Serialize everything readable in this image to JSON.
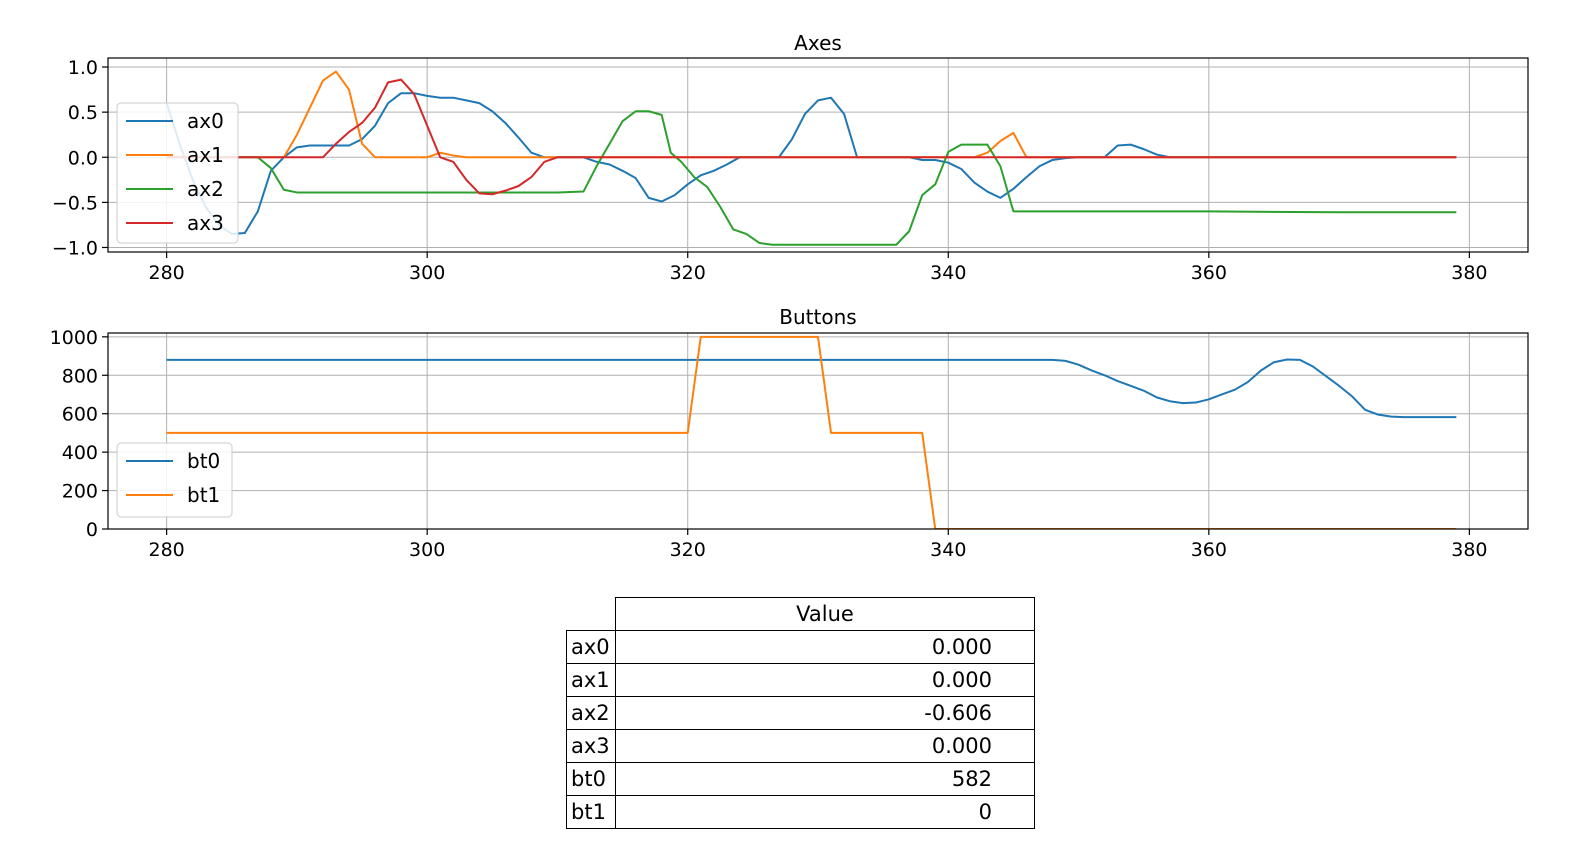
{
  "chart_data": [
    {
      "type": "line",
      "title": "Axes",
      "xlim": [
        275.5,
        384.5
      ],
      "ylim": [
        -1.05,
        1.1
      ],
      "xticks": [
        280,
        300,
        320,
        340,
        360,
        380
      ],
      "yticks": [
        1.0,
        0.5,
        0.0,
        -0.5,
        -1.0
      ],
      "ytick_labels": [
        "1.0",
        "0.5",
        "0.0",
        "−0.5",
        "−1.0"
      ],
      "grid": true,
      "legend": "center-left",
      "series": [
        {
          "name": "ax0",
          "color": "#1f77b4",
          "points": [
            [
              280,
              0.6
            ],
            [
              281,
              0.15
            ],
            [
              282,
              -0.25
            ],
            [
              283,
              -0.55
            ],
            [
              284,
              -0.75
            ],
            [
              285,
              -0.85
            ],
            [
              286,
              -0.84
            ],
            [
              287,
              -0.6
            ],
            [
              288,
              -0.15
            ],
            [
              289,
              0.0
            ],
            [
              290,
              0.11
            ],
            [
              291,
              0.13
            ],
            [
              292,
              0.13
            ],
            [
              293,
              0.13
            ],
            [
              294,
              0.13
            ],
            [
              295,
              0.2
            ],
            [
              296,
              0.35
            ],
            [
              297,
              0.6
            ],
            [
              298,
              0.71
            ],
            [
              299,
              0.71
            ],
            [
              300,
              0.68
            ],
            [
              301,
              0.66
            ],
            [
              302,
              0.66
            ],
            [
              303,
              0.63
            ],
            [
              304,
              0.6
            ],
            [
              305,
              0.51
            ],
            [
              306,
              0.38
            ],
            [
              307,
              0.22
            ],
            [
              308,
              0.05
            ],
            [
              309,
              0.0
            ],
            [
              310,
              0.0
            ],
            [
              311,
              0.0
            ],
            [
              312,
              0.0
            ],
            [
              313,
              -0.05
            ],
            [
              314,
              -0.08
            ],
            [
              315,
              -0.15
            ],
            [
              316,
              -0.23
            ],
            [
              317,
              -0.45
            ],
            [
              318,
              -0.49
            ],
            [
              319,
              -0.42
            ],
            [
              320,
              -0.3
            ],
            [
              321,
              -0.2
            ],
            [
              322,
              -0.15
            ],
            [
              323,
              -0.08
            ],
            [
              324,
              0.0
            ],
            [
              325,
              0.0
            ],
            [
              326,
              0.0
            ],
            [
              327,
              0.0
            ],
            [
              328,
              0.2
            ],
            [
              329,
              0.48
            ],
            [
              330,
              0.63
            ],
            [
              331,
              0.66
            ],
            [
              332,
              0.48
            ],
            [
              333,
              0.0
            ],
            [
              334,
              0.0
            ],
            [
              335,
              0.0
            ],
            [
              336,
              0.0
            ],
            [
              337,
              0.0
            ],
            [
              338,
              -0.03
            ],
            [
              339,
              -0.03
            ],
            [
              340,
              -0.06
            ],
            [
              341,
              -0.13
            ],
            [
              342,
              -0.28
            ],
            [
              343,
              -0.38
            ],
            [
              344,
              -0.45
            ],
            [
              345,
              -0.35
            ],
            [
              346,
              -0.22
            ],
            [
              347,
              -0.1
            ],
            [
              348,
              -0.03
            ],
            [
              349,
              -0.01
            ],
            [
              350,
              0.0
            ],
            [
              351,
              0.0
            ],
            [
              352,
              0.0
            ],
            [
              353,
              0.13
            ],
            [
              354,
              0.14
            ],
            [
              355,
              0.09
            ],
            [
              356,
              0.03
            ],
            [
              357,
              0.0
            ],
            [
              358,
              0.0
            ],
            [
              379,
              0.0
            ]
          ]
        },
        {
          "name": "ax1",
          "color": "#ff7f0e",
          "points": [
            [
              280,
              0.0
            ],
            [
              288,
              0.0
            ],
            [
              289,
              0.0
            ],
            [
              290,
              0.25
            ],
            [
              291,
              0.55
            ],
            [
              292,
              0.85
            ],
            [
              293,
              0.95
            ],
            [
              294,
              0.75
            ],
            [
              295,
              0.15
            ],
            [
              296,
              0.0
            ],
            [
              300,
              0.0
            ],
            [
              301,
              0.05
            ],
            [
              302,
              0.02
            ],
            [
              303,
              0.0
            ],
            [
              342,
              0.0
            ],
            [
              343,
              0.05
            ],
            [
              344,
              0.18
            ],
            [
              345,
              0.27
            ],
            [
              346,
              0.0
            ],
            [
              379,
              0.0
            ]
          ]
        },
        {
          "name": "ax2",
          "color": "#2ca02c",
          "points": [
            [
              280,
              0.0
            ],
            [
              287,
              0.0
            ],
            [
              288,
              -0.12
            ],
            [
              289,
              -0.36
            ],
            [
              290,
              -0.39
            ],
            [
              300,
              -0.39
            ],
            [
              310,
              -0.39
            ],
            [
              312,
              -0.38
            ],
            [
              313,
              -0.1
            ],
            [
              314,
              0.15
            ],
            [
              315,
              0.4
            ],
            [
              316,
              0.51
            ],
            [
              317,
              0.51
            ],
            [
              318,
              0.47
            ],
            [
              318.7,
              0.05
            ],
            [
              319.5,
              -0.05
            ],
            [
              320.5,
              -0.22
            ],
            [
              321.5,
              -0.33
            ],
            [
              322.5,
              -0.55
            ],
            [
              323.5,
              -0.8
            ],
            [
              324.5,
              -0.85
            ],
            [
              325.5,
              -0.95
            ],
            [
              326.5,
              -0.97
            ],
            [
              330,
              -0.97
            ],
            [
              333,
              -0.97
            ],
            [
              336,
              -0.97
            ],
            [
              337,
              -0.82
            ],
            [
              338,
              -0.42
            ],
            [
              339,
              -0.3
            ],
            [
              340,
              0.06
            ],
            [
              341,
              0.14
            ],
            [
              343,
              0.14
            ],
            [
              344,
              -0.1
            ],
            [
              345,
              -0.6
            ],
            [
              350,
              -0.6
            ],
            [
              360,
              -0.6
            ],
            [
              370,
              -0.61
            ],
            [
              379,
              -0.61
            ]
          ]
        },
        {
          "name": "ax3",
          "color": "#d62728",
          "points": [
            [
              280,
              0.0
            ],
            [
              291,
              0.0
            ],
            [
              292,
              0.0
            ],
            [
              293,
              0.15
            ],
            [
              294,
              0.28
            ],
            [
              295,
              0.38
            ],
            [
              296,
              0.55
            ],
            [
              297,
              0.83
            ],
            [
              298,
              0.86
            ],
            [
              299,
              0.7
            ],
            [
              300,
              0.35
            ],
            [
              301,
              0.0
            ],
            [
              302,
              -0.05
            ],
            [
              303,
              -0.25
            ],
            [
              304,
              -0.4
            ],
            [
              305,
              -0.41
            ],
            [
              306,
              -0.37
            ],
            [
              307,
              -0.32
            ],
            [
              308,
              -0.22
            ],
            [
              309,
              -0.05
            ],
            [
              310,
              0.0
            ],
            [
              379,
              0.0
            ]
          ]
        }
      ]
    },
    {
      "type": "line",
      "title": "Buttons",
      "xlim": [
        275.5,
        384.5
      ],
      "ylim": [
        0,
        1020
      ],
      "xticks": [
        280,
        300,
        320,
        340,
        360,
        380
      ],
      "yticks": [
        0,
        200,
        400,
        600,
        800,
        1000
      ],
      "ytick_labels": [
        "0",
        "200",
        "400",
        "600",
        "800",
        "1000"
      ],
      "grid": true,
      "legend": "lower-left",
      "series": [
        {
          "name": "bt0",
          "color": "#1f77b4",
          "points": [
            [
              280,
              880
            ],
            [
              300,
              880
            ],
            [
              320,
              880
            ],
            [
              340,
              880
            ],
            [
              348,
              880
            ],
            [
              349,
              875
            ],
            [
              350,
              855
            ],
            [
              351,
              825
            ],
            [
              352,
              800
            ],
            [
              353,
              770
            ],
            [
              354,
              745
            ],
            [
              355,
              720
            ],
            [
              356,
              685
            ],
            [
              357,
              665
            ],
            [
              358,
              655
            ],
            [
              359,
              658
            ],
            [
              360,
              675
            ],
            [
              361,
              700
            ],
            [
              362,
              725
            ],
            [
              363,
              765
            ],
            [
              364,
              825
            ],
            [
              365,
              868
            ],
            [
              366,
              882
            ],
            [
              367,
              880
            ],
            [
              368,
              845
            ],
            [
              369,
              795
            ],
            [
              370,
              745
            ],
            [
              371,
              690
            ],
            [
              372,
              620
            ],
            [
              373,
              595
            ],
            [
              374,
              585
            ],
            [
              375,
              582
            ],
            [
              379,
              582
            ]
          ]
        },
        {
          "name": "bt1",
          "color": "#ff7f0e",
          "points": [
            [
              280,
              500
            ],
            [
              320,
              500
            ],
            [
              321,
              1000
            ],
            [
              330,
              1000
            ],
            [
              331,
              500
            ],
            [
              338,
              500
            ],
            [
              339,
              0
            ],
            [
              379,
              0
            ]
          ]
        }
      ]
    }
  ],
  "table": {
    "header": "Value",
    "rows": [
      {
        "label": "ax0",
        "value": "0.000"
      },
      {
        "label": "ax1",
        "value": "0.000"
      },
      {
        "label": "ax2",
        "value": "-0.606"
      },
      {
        "label": "ax3",
        "value": "0.000"
      },
      {
        "label": "bt0",
        "value": "582"
      },
      {
        "label": "bt1",
        "value": "0"
      }
    ]
  }
}
